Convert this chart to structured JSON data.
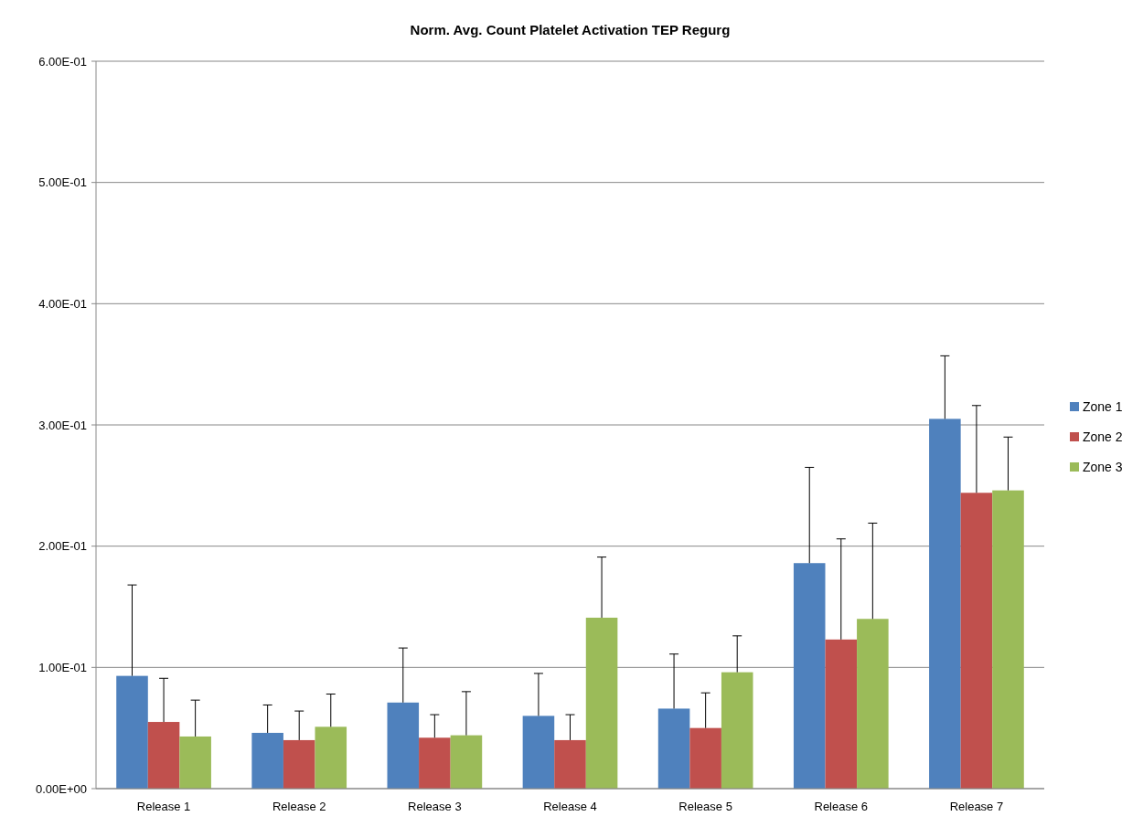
{
  "chart_data": {
    "type": "bar",
    "title": "Norm. Avg. Count Platelet Activation TEP Regurg",
    "categories": [
      "Release 1",
      "Release 2",
      "Release 3",
      "Release 4",
      "Release 5",
      "Release 6",
      "Release 7"
    ],
    "series": [
      {
        "name": "Zone 1",
        "color": "#4f81bd",
        "values": [
          0.093,
          0.046,
          0.071,
          0.06,
          0.066,
          0.186,
          0.305
        ],
        "errors": [
          [
            0.093,
            0.168
          ],
          [
            0.046,
            0.069
          ],
          [
            0.071,
            0.116
          ],
          [
            0.06,
            0.095
          ],
          [
            0.066,
            0.111
          ],
          [
            0.186,
            0.265
          ],
          [
            0.305,
            0.357
          ]
        ]
      },
      {
        "name": "Zone 2",
        "color": "#c0504d",
        "values": [
          0.055,
          0.04,
          0.042,
          0.04,
          0.05,
          0.123,
          0.244
        ],
        "errors": [
          [
            0.055,
            0.091
          ],
          [
            0.04,
            0.064
          ],
          [
            0.042,
            0.061
          ],
          [
            0.04,
            0.061
          ],
          [
            0.05,
            0.079
          ],
          [
            0.123,
            0.206
          ],
          [
            0.244,
            0.316
          ]
        ]
      },
      {
        "name": "Zone 3",
        "color": "#9bbb59",
        "values": [
          0.043,
          0.051,
          0.044,
          0.141,
          0.096,
          0.14,
          0.246
        ],
        "errors": [
          [
            0.043,
            0.073
          ],
          [
            0.051,
            0.078
          ],
          [
            0.044,
            0.08
          ],
          [
            0.141,
            0.191
          ],
          [
            0.096,
            0.126
          ],
          [
            0.14,
            0.219
          ],
          [
            0.246,
            0.29
          ]
        ]
      }
    ],
    "ylim": [
      0,
      0.6
    ],
    "yticks": [
      {
        "value": 0,
        "label": "0.00E+00"
      },
      {
        "value": 0.1,
        "label": "1.00E-01"
      },
      {
        "value": 0.2,
        "label": "2.00E-01"
      },
      {
        "value": 0.3,
        "label": "3.00E-01"
      },
      {
        "value": 0.4,
        "label": "4.00E-01"
      },
      {
        "value": 0.5,
        "label": "5.00E-01"
      },
      {
        "value": 0.6,
        "label": "6.00E-01"
      }
    ],
    "grid": "y",
    "legend": "right"
  }
}
